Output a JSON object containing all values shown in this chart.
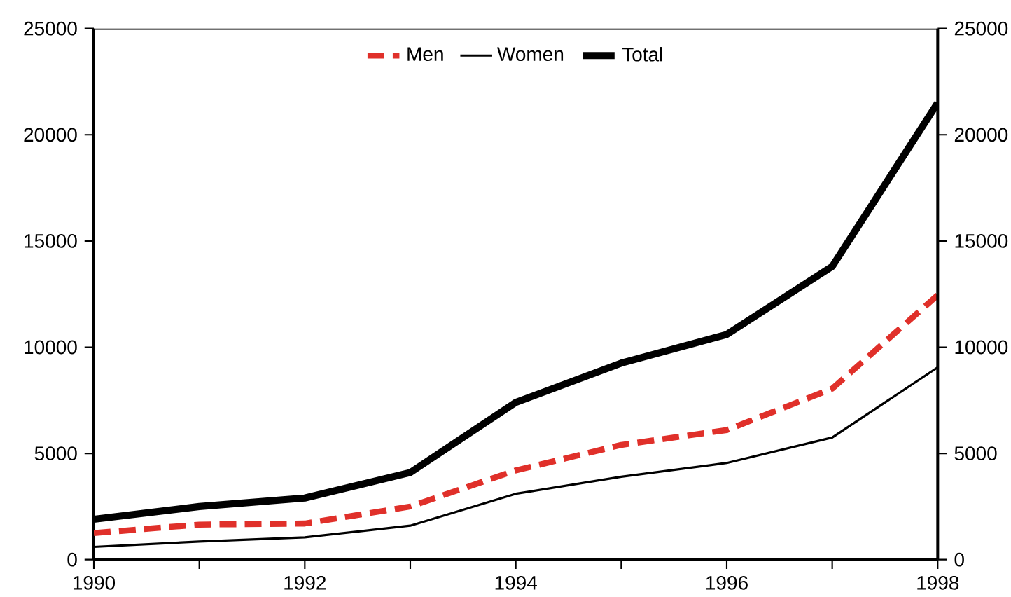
{
  "chart_data": {
    "type": "line",
    "x": [
      1990,
      1991,
      1992,
      1993,
      1994,
      1995,
      1996,
      1997,
      1998
    ],
    "series": [
      {
        "name": "Men",
        "color": "#e0302a",
        "line_style": "dashed",
        "values": [
          1250,
          1650,
          1700,
          2500,
          4200,
          5400,
          6100,
          8050,
          12450
        ]
      },
      {
        "name": "Women",
        "color": "#000000",
        "line_style": "solid",
        "values": [
          600,
          850,
          1050,
          1600,
          3100,
          3900,
          4550,
          5750,
          9050
        ]
      },
      {
        "name": "Total",
        "color": "#000000",
        "line_style": "solid",
        "values": [
          1900,
          2500,
          2900,
          4100,
          7400,
          9250,
          10600,
          13800,
          21500
        ]
      }
    ],
    "xlim": [
      1990,
      1998
    ],
    "xticks": [
      1990,
      {
        "value": 1991,
        "label": null
      },
      1992,
      {
        "value": 1993,
        "label": null
      },
      1994,
      {
        "value": 1995,
        "label": null
      },
      1996,
      {
        "value": 1997,
        "label": null
      },
      1998
    ],
    "ylim": [
      0,
      25000
    ],
    "yticks": [
      0,
      5000,
      10000,
      15000,
      20000,
      25000
    ],
    "y2lim": [
      0,
      25000
    ],
    "y2ticks": [
      0,
      5000,
      10000,
      15000,
      20000,
      25000
    ],
    "legend": "top",
    "marker": "none",
    "grid": false
  }
}
